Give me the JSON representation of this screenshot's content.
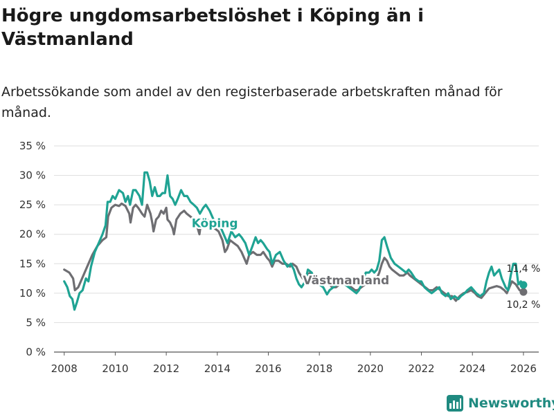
{
  "title": "Högre ungdomsarbetslöshet i Köping än i Västmanland",
  "subtitle": "Arbetssökande som andel av den registerbaserade arbetskraften månad för månad.",
  "brand": {
    "name": "Newsworthy",
    "icon": "bar-chart-icon",
    "color": "#1f8a80"
  },
  "chart_data": {
    "type": "line",
    "ylim": [
      0,
      35
    ],
    "xlim": [
      2007.6,
      2026.6
    ],
    "yticks": [
      0,
      5,
      10,
      15,
      20,
      25,
      30,
      35
    ],
    "ytick_labels": [
      "0 %",
      "5 %",
      "10 %",
      "15 %",
      "20 %",
      "25 %",
      "30 %",
      "35 %"
    ],
    "xticks": [
      2008,
      2010,
      2012,
      2014,
      2016,
      2018,
      2020,
      2022,
      2024,
      2026
    ],
    "xtick_labels": [
      "2008",
      "2010",
      "2012",
      "2014",
      "2016",
      "2018",
      "2020",
      "2022",
      "2024",
      "2026"
    ],
    "grid": true,
    "series": [
      {
        "name": "Västmanland",
        "label": "Västmanland",
        "color": "#6e6e72",
        "end_label": "10,2 %",
        "end_value": 10.2,
        "points": [
          [
            2008.0,
            14.0
          ],
          [
            2008.2,
            13.5
          ],
          [
            2008.35,
            12.5
          ],
          [
            2008.42,
            10.5
          ],
          [
            2008.55,
            11.0
          ],
          [
            2008.7,
            12.5
          ],
          [
            2008.9,
            14.5
          ],
          [
            2009.1,
            16.5
          ],
          [
            2009.3,
            18.0
          ],
          [
            2009.5,
            19.0
          ],
          [
            2009.65,
            19.5
          ],
          [
            2009.72,
            23.0
          ],
          [
            2009.85,
            24.5
          ],
          [
            2010.0,
            25.0
          ],
          [
            2010.15,
            24.8
          ],
          [
            2010.25,
            25.2
          ],
          [
            2010.4,
            24.8
          ],
          [
            2010.55,
            23.5
          ],
          [
            2010.6,
            22.0
          ],
          [
            2010.7,
            24.5
          ],
          [
            2010.8,
            25.0
          ],
          [
            2010.9,
            24.5
          ],
          [
            2011.05,
            23.5
          ],
          [
            2011.15,
            23.0
          ],
          [
            2011.25,
            25.0
          ],
          [
            2011.38,
            23.5
          ],
          [
            2011.45,
            22.0
          ],
          [
            2011.5,
            20.5
          ],
          [
            2011.6,
            22.5
          ],
          [
            2011.7,
            23.0
          ],
          [
            2011.8,
            24.0
          ],
          [
            2011.9,
            23.5
          ],
          [
            2012.0,
            24.5
          ],
          [
            2012.05,
            22.5
          ],
          [
            2012.15,
            22.0
          ],
          [
            2012.25,
            21.0
          ],
          [
            2012.3,
            20.0
          ],
          [
            2012.4,
            22.5
          ],
          [
            2012.55,
            23.5
          ],
          [
            2012.7,
            24.0
          ],
          [
            2012.8,
            23.5
          ],
          [
            2012.95,
            23.0
          ],
          [
            2013.1,
            22.5
          ],
          [
            2013.2,
            21.5
          ],
          [
            2013.3,
            20.0
          ],
          [
            2013.35,
            21.5
          ],
          [
            2013.45,
            22.0
          ],
          [
            2013.6,
            22.5
          ],
          [
            2013.75,
            22.0
          ],
          [
            2013.9,
            21.0
          ],
          [
            2014.05,
            20.5
          ],
          [
            2014.2,
            19.0
          ],
          [
            2014.3,
            17.0
          ],
          [
            2014.38,
            17.5
          ],
          [
            2014.5,
            19.0
          ],
          [
            2014.65,
            18.5
          ],
          [
            2014.8,
            18.0
          ],
          [
            2014.95,
            17.0
          ],
          [
            2015.05,
            16.0
          ],
          [
            2015.15,
            15.0
          ],
          [
            2015.25,
            16.5
          ],
          [
            2015.4,
            17.0
          ],
          [
            2015.55,
            16.5
          ],
          [
            2015.7,
            16.5
          ],
          [
            2015.8,
            17.0
          ],
          [
            2015.95,
            16.0
          ],
          [
            2016.05,
            15.5
          ],
          [
            2016.15,
            14.5
          ],
          [
            2016.25,
            15.5
          ],
          [
            2016.4,
            15.5
          ],
          [
            2016.55,
            15.0
          ],
          [
            2016.7,
            15.0
          ],
          [
            2016.85,
            14.5
          ],
          [
            2016.95,
            15.0
          ],
          [
            2017.1,
            14.5
          ],
          [
            2017.2,
            13.5
          ],
          [
            2017.35,
            12.5
          ],
          [
            2017.5,
            13.0
          ],
          [
            2017.65,
            13.5
          ],
          [
            2017.8,
            13.0
          ],
          [
            2017.95,
            12.5
          ],
          [
            2018.1,
            12.5
          ],
          [
            2018.25,
            12.0
          ],
          [
            2018.4,
            11.5
          ],
          [
            2018.5,
            11.0
          ],
          [
            2018.65,
            11.0
          ],
          [
            2018.8,
            11.5
          ],
          [
            2018.95,
            12.0
          ],
          [
            2019.1,
            11.5
          ],
          [
            2019.25,
            11.0
          ],
          [
            2019.4,
            10.5
          ],
          [
            2019.5,
            10.5
          ],
          [
            2019.65,
            11.0
          ],
          [
            2019.8,
            11.5
          ],
          [
            2019.95,
            12.0
          ],
          [
            2020.1,
            12.5
          ],
          [
            2020.25,
            12.5
          ],
          [
            2020.35,
            13.5
          ],
          [
            2020.45,
            15.0
          ],
          [
            2020.55,
            16.0
          ],
          [
            2020.65,
            15.5
          ],
          [
            2020.75,
            14.5
          ],
          [
            2020.85,
            14.0
          ],
          [
            2021.0,
            13.5
          ],
          [
            2021.15,
            13.0
          ],
          [
            2021.3,
            13.0
          ],
          [
            2021.45,
            13.5
          ],
          [
            2021.55,
            13.0
          ],
          [
            2021.7,
            12.5
          ],
          [
            2021.85,
            12.0
          ],
          [
            2022.0,
            11.5
          ],
          [
            2022.15,
            11.0
          ],
          [
            2022.3,
            10.5
          ],
          [
            2022.45,
            10.5
          ],
          [
            2022.6,
            11.0
          ],
          [
            2022.75,
            10.5
          ],
          [
            2022.9,
            10.0
          ],
          [
            2023.05,
            9.5
          ],
          [
            2023.2,
            9.5
          ],
          [
            2023.35,
            8.7
          ],
          [
            2023.5,
            9.5
          ],
          [
            2023.65,
            10.0
          ],
          [
            2023.8,
            10.2
          ],
          [
            2023.95,
            10.5
          ],
          [
            2024.1,
            10.0
          ],
          [
            2024.2,
            9.5
          ],
          [
            2024.35,
            9.2
          ],
          [
            2024.5,
            10.0
          ],
          [
            2024.65,
            10.8
          ],
          [
            2024.8,
            11.0
          ],
          [
            2024.95,
            11.2
          ],
          [
            2025.1,
            11.0
          ],
          [
            2025.25,
            10.5
          ],
          [
            2025.35,
            10.0
          ],
          [
            2025.45,
            11.0
          ],
          [
            2025.55,
            12.0
          ],
          [
            2025.7,
            11.5
          ],
          [
            2025.85,
            10.5
          ],
          [
            2026.0,
            10.2
          ]
        ]
      },
      {
        "name": "Köping",
        "label": "Köping",
        "color": "#1fa393",
        "end_label": "11,4 %",
        "end_value": 11.4,
        "points": [
          [
            2008.0,
            12.0
          ],
          [
            2008.12,
            11.0
          ],
          [
            2008.22,
            9.5
          ],
          [
            2008.32,
            9.0
          ],
          [
            2008.4,
            7.2
          ],
          [
            2008.5,
            8.5
          ],
          [
            2008.6,
            10.0
          ],
          [
            2008.72,
            10.5
          ],
          [
            2008.85,
            12.5
          ],
          [
            2008.95,
            12.0
          ],
          [
            2009.05,
            14.5
          ],
          [
            2009.2,
            17.0
          ],
          [
            2009.35,
            18.5
          ],
          [
            2009.5,
            20.0
          ],
          [
            2009.62,
            21.5
          ],
          [
            2009.7,
            25.5
          ],
          [
            2009.8,
            25.5
          ],
          [
            2009.9,
            26.5
          ],
          [
            2010.0,
            26.0
          ],
          [
            2010.15,
            27.5
          ],
          [
            2010.3,
            27.0
          ],
          [
            2010.4,
            25.5
          ],
          [
            2010.5,
            26.5
          ],
          [
            2010.58,
            25.0
          ],
          [
            2010.7,
            27.5
          ],
          [
            2010.8,
            27.5
          ],
          [
            2010.95,
            26.5
          ],
          [
            2011.05,
            25.0
          ],
          [
            2011.15,
            30.5
          ],
          [
            2011.25,
            30.5
          ],
          [
            2011.35,
            29.0
          ],
          [
            2011.45,
            26.5
          ],
          [
            2011.55,
            28.0
          ],
          [
            2011.65,
            26.5
          ],
          [
            2011.75,
            26.5
          ],
          [
            2011.85,
            27.0
          ],
          [
            2011.95,
            27.0
          ],
          [
            2012.05,
            30.0
          ],
          [
            2012.15,
            26.5
          ],
          [
            2012.25,
            26.0
          ],
          [
            2012.35,
            25.0
          ],
          [
            2012.45,
            26.0
          ],
          [
            2012.58,
            27.5
          ],
          [
            2012.7,
            26.5
          ],
          [
            2012.82,
            26.5
          ],
          [
            2012.95,
            25.5
          ],
          [
            2013.08,
            25.0
          ],
          [
            2013.2,
            24.5
          ],
          [
            2013.32,
            23.5
          ],
          [
            2013.45,
            24.5
          ],
          [
            2013.55,
            25.0
          ],
          [
            2013.7,
            24.0
          ],
          [
            2013.85,
            22.5
          ],
          [
            2013.95,
            21.5
          ],
          [
            2014.1,
            21.5
          ],
          [
            2014.25,
            20.0
          ],
          [
            2014.4,
            18.5
          ],
          [
            2014.55,
            20.5
          ],
          [
            2014.7,
            19.5
          ],
          [
            2014.85,
            20.0
          ],
          [
            2014.95,
            19.5
          ],
          [
            2015.1,
            18.5
          ],
          [
            2015.25,
            16.5
          ],
          [
            2015.38,
            18.0
          ],
          [
            2015.5,
            19.5
          ],
          [
            2015.6,
            18.5
          ],
          [
            2015.7,
            19.0
          ],
          [
            2015.8,
            18.5
          ],
          [
            2015.95,
            17.5
          ],
          [
            2016.05,
            17.0
          ],
          [
            2016.15,
            15.0
          ],
          [
            2016.3,
            16.5
          ],
          [
            2016.45,
            17.0
          ],
          [
            2016.6,
            15.5
          ],
          [
            2016.75,
            14.5
          ],
          [
            2016.88,
            15.0
          ],
          [
            2017.0,
            14.0
          ],
          [
            2017.1,
            12.5
          ],
          [
            2017.2,
            11.5
          ],
          [
            2017.3,
            11.0
          ],
          [
            2017.45,
            12.0
          ],
          [
            2017.55,
            14.0
          ],
          [
            2017.7,
            13.5
          ],
          [
            2017.85,
            12.0
          ],
          [
            2018.0,
            11.5
          ],
          [
            2018.15,
            11.0
          ],
          [
            2018.3,
            9.8
          ],
          [
            2018.4,
            10.5
          ],
          [
            2018.55,
            11.0
          ],
          [
            2018.7,
            11.5
          ],
          [
            2018.85,
            11.5
          ],
          [
            2019.0,
            11.5
          ],
          [
            2019.15,
            11.0
          ],
          [
            2019.3,
            10.5
          ],
          [
            2019.45,
            10.0
          ],
          [
            2019.55,
            10.5
          ],
          [
            2019.7,
            12.0
          ],
          [
            2019.82,
            13.5
          ],
          [
            2019.95,
            13.5
          ],
          [
            2020.05,
            14.0
          ],
          [
            2020.15,
            13.5
          ],
          [
            2020.25,
            14.0
          ],
          [
            2020.35,
            15.5
          ],
          [
            2020.45,
            19.0
          ],
          [
            2020.55,
            19.5
          ],
          [
            2020.65,
            18.0
          ],
          [
            2020.8,
            16.0
          ],
          [
            2020.95,
            15.0
          ],
          [
            2021.1,
            14.5
          ],
          [
            2021.25,
            14.0
          ],
          [
            2021.4,
            13.5
          ],
          [
            2021.5,
            14.0
          ],
          [
            2021.6,
            13.5
          ],
          [
            2021.75,
            12.5
          ],
          [
            2021.9,
            12.0
          ],
          [
            2022.0,
            12.0
          ],
          [
            2022.12,
            11.0
          ],
          [
            2022.25,
            10.5
          ],
          [
            2022.4,
            10.0
          ],
          [
            2022.55,
            10.5
          ],
          [
            2022.7,
            11.0
          ],
          [
            2022.8,
            10.0
          ],
          [
            2022.95,
            9.5
          ],
          [
            2023.05,
            10.0
          ],
          [
            2023.15,
            9.0
          ],
          [
            2023.3,
            9.5
          ],
          [
            2023.45,
            9.0
          ],
          [
            2023.55,
            9.5
          ],
          [
            2023.7,
            10.0
          ],
          [
            2023.8,
            10.5
          ],
          [
            2023.95,
            11.0
          ],
          [
            2024.05,
            10.5
          ],
          [
            2024.15,
            10.0
          ],
          [
            2024.3,
            9.5
          ],
          [
            2024.45,
            10.0
          ],
          [
            2024.55,
            12.0
          ],
          [
            2024.65,
            13.5
          ],
          [
            2024.75,
            14.5
          ],
          [
            2024.85,
            13.0
          ],
          [
            2024.95,
            13.5
          ],
          [
            2025.05,
            14.0
          ],
          [
            2025.15,
            12.5
          ],
          [
            2025.3,
            11.0
          ],
          [
            2025.4,
            10.5
          ],
          [
            2025.5,
            13.0
          ],
          [
            2025.6,
            15.0
          ],
          [
            2025.7,
            15.0
          ],
          [
            2025.8,
            11.5
          ],
          [
            2025.9,
            12.0
          ],
          [
            2026.0,
            11.4
          ]
        ]
      }
    ]
  }
}
